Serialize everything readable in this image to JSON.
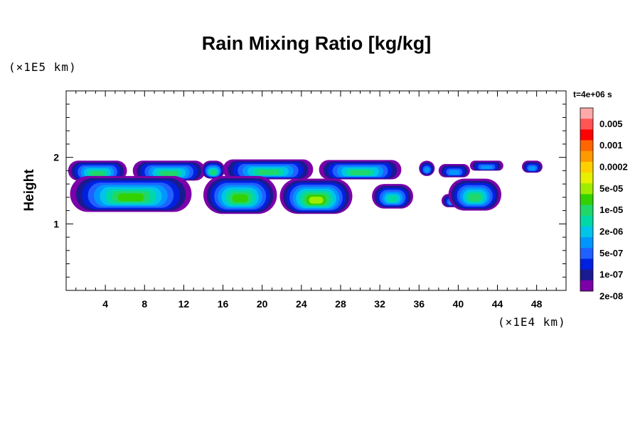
{
  "chart_data": {
    "type": "heatmap",
    "title": "Rain Mixing Ratio [kg/kg]",
    "time_label": "t=4e+06 s",
    "ylabel": "Height",
    "xlabel": "",
    "x_unit_label": "(×1E4 km)",
    "y_unit_label": "(×1E5 km)",
    "xlim": [
      0,
      51
    ],
    "ylim": [
      0,
      3
    ],
    "x_ticks": [
      "4",
      "8",
      "12",
      "16",
      "20",
      "24",
      "28",
      "32",
      "36",
      "40",
      "44",
      "48"
    ],
    "y_ticks": [
      "1",
      "2"
    ],
    "colorbar": {
      "labels": [
        "0.005",
        "0.001",
        "0.0002",
        "5e-05",
        "1e-05",
        "2e-06",
        "5e-07",
        "1e-07",
        "2e-08"
      ],
      "colors": [
        "#ffaaaa",
        "#ff5555",
        "#ff0000",
        "#ff6600",
        "#ff9900",
        "#ffd000",
        "#e6f000",
        "#a0ec00",
        "#33d100",
        "#20d86a",
        "#00d9a6",
        "#00c4e8",
        "#0096ff",
        "#2060ff",
        "#0020e0",
        "#1a1a90",
        "#7b00a8"
      ]
    },
    "cells": [
      {
        "x": [
          0.2,
          6.2
        ],
        "y": [
          1.65,
          1.95
        ],
        "level": 7
      },
      {
        "x": [
          6.8,
          14.2
        ],
        "y": [
          1.65,
          1.95
        ],
        "level": 7
      },
      {
        "x": [
          13.8,
          16.2
        ],
        "y": [
          1.68,
          1.95
        ],
        "level": 7
      },
      {
        "x": [
          16.0,
          25.2
        ],
        "y": [
          1.67,
          1.97
        ],
        "level": 7
      },
      {
        "x": [
          25.8,
          34.2
        ],
        "y": [
          1.67,
          1.96
        ],
        "level": 7
      },
      {
        "x": [
          36.0,
          37.6
        ],
        "y": [
          1.72,
          1.95
        ],
        "level": 4
      },
      {
        "x": [
          38.0,
          41.2
        ],
        "y": [
          1.7,
          1.9
        ],
        "level": 4
      },
      {
        "x": [
          41.2,
          44.6
        ],
        "y": [
          1.8,
          1.95
        ],
        "level": 4
      },
      {
        "x": [
          46.5,
          48.6
        ],
        "y": [
          1.77,
          1.95
        ],
        "level": 4
      },
      {
        "x": [
          0.4,
          12.8
        ],
        "y": [
          1.18,
          1.72
        ],
        "level": 8
      },
      {
        "x": [
          14.0,
          21.5
        ],
        "y": [
          1.15,
          1.72
        ],
        "level": 8
      },
      {
        "x": [
          21.8,
          29.2
        ],
        "y": [
          1.15,
          1.68
        ],
        "level": 9
      },
      {
        "x": [
          31.2,
          35.4
        ],
        "y": [
          1.23,
          1.6
        ],
        "level": 6
      },
      {
        "x": [
          38.3,
          40.5
        ],
        "y": [
          1.25,
          1.45
        ],
        "level": 4
      },
      {
        "x": [
          39.0,
          44.4
        ],
        "y": [
          1.2,
          1.68
        ],
        "level": 7
      }
    ]
  }
}
